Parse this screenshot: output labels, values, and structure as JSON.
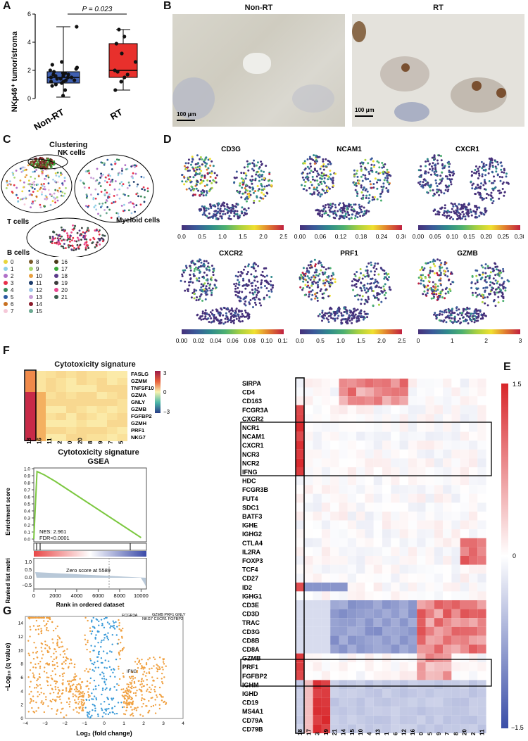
{
  "panels": {
    "A": "A",
    "B": "B",
    "C": "C",
    "D": "D",
    "E": "E",
    "F": "F",
    "G": "G"
  },
  "a": {
    "ylabel": "NKp46⁺ tumor/stroma",
    "pvalue": "P = 0.023",
    "groups": [
      "Non-RT",
      "RT"
    ],
    "yticks": [
      "0",
      "2",
      "4",
      "6"
    ],
    "colors": {
      "nonrt": "#3f5fb0",
      "rt": "#e8302c"
    },
    "chart_data": {
      "type": "box",
      "ylim": [
        0,
        6
      ],
      "boxes": [
        {
          "name": "Non-RT",
          "min": 0.1,
          "q1": 1.1,
          "median": 1.5,
          "q3": 1.9,
          "max": 5.1
        },
        {
          "name": "RT",
          "min": 0.6,
          "q1": 1.5,
          "median": 2.0,
          "q3": 3.9,
          "max": 4.9
        }
      ],
      "points": {
        "Non-RT": [
          0.2,
          0.6,
          0.9,
          1.0,
          1.1,
          1.2,
          1.2,
          1.3,
          1.3,
          1.4,
          1.4,
          1.5,
          1.5,
          1.5,
          1.6,
          1.6,
          1.7,
          1.7,
          1.8,
          1.8,
          1.9,
          2.0,
          2.1,
          2.2,
          2.4,
          2.6,
          5.1
        ],
        "RT": [
          0.6,
          1.2,
          1.5,
          1.7,
          1.9,
          2.0,
          2.6,
          3.2,
          3.9,
          4.4,
          4.9
        ]
      }
    }
  },
  "b": {
    "title_left": "Non-RT",
    "title_right": "RT",
    "scale": "100 μm"
  },
  "c": {
    "title": "Clustering",
    "labels": {
      "nk": "NK cells",
      "t": "T cells",
      "myeloid": "Myeloid cells",
      "b": "B cells"
    },
    "legend": [
      {
        "id": "0",
        "color": "#e8d53a"
      },
      {
        "id": "1",
        "color": "#8fd0e6"
      },
      {
        "id": "2",
        "color": "#b070c8"
      },
      {
        "id": "3",
        "color": "#e8304a"
      },
      {
        "id": "4",
        "color": "#3a8a58"
      },
      {
        "id": "5",
        "color": "#2c5aa0"
      },
      {
        "id": "6",
        "color": "#c87020"
      },
      {
        "id": "7",
        "color": "#f5c8d8"
      },
      {
        "id": "8",
        "color": "#7a5a2a"
      },
      {
        "id": "9",
        "color": "#a8d870"
      },
      {
        "id": "10",
        "color": "#e8a040"
      },
      {
        "id": "11",
        "color": "#1a3a6a"
      },
      {
        "id": "12",
        "color": "#a0c8e8"
      },
      {
        "id": "13",
        "color": "#c8a0d8"
      },
      {
        "id": "14",
        "color": "#8a1a2a"
      },
      {
        "id": "15",
        "color": "#6aa890"
      },
      {
        "id": "16",
        "color": "#4a3a1a"
      },
      {
        "id": "17",
        "color": "#38a838"
      },
      {
        "id": "18",
        "color": "#5a3a8a"
      },
      {
        "id": "19",
        "color": "#3a3a3a"
      },
      {
        "id": "20",
        "color": "#e84890"
      },
      {
        "id": "21",
        "color": "#3a5a4a"
      }
    ]
  },
  "d": {
    "plots": [
      {
        "title": "CD3G",
        "ticks": [
          "0.0",
          "0.5",
          "1.0",
          "1.5",
          "2.0",
          "2.5"
        ]
      },
      {
        "title": "NCAM1",
        "ticks": [
          "0.00",
          "0.06",
          "0.12",
          "0.18",
          "0.24",
          "0.30"
        ]
      },
      {
        "title": "CXCR1",
        "ticks": [
          "0.00",
          "0.05",
          "0.10",
          "0.15",
          "0.20",
          "0.25",
          "0.30"
        ]
      },
      {
        "title": "CXCR2",
        "ticks": [
          "0.00",
          "0.02",
          "0.04",
          "0.06",
          "0.08",
          "0.10",
          "0.12"
        ]
      },
      {
        "title": "PRF1",
        "ticks": [
          "0.0",
          "0.5",
          "1.0",
          "1.5",
          "2.0",
          "2.5"
        ]
      },
      {
        "title": "GZMB",
        "ticks": [
          "0",
          "1",
          "2",
          "3"
        ]
      }
    ]
  },
  "f": {
    "heatmap_title": "Cytotoxicity signature",
    "genes": [
      "FASLG",
      "GZMM",
      "TNFSF10",
      "GZMA",
      "GNLY",
      "GZMB",
      "FGFBP2",
      "GZMH",
      "PRF1",
      "NKG7"
    ],
    "columns": [
      "18",
      "16",
      "11",
      "2",
      "0",
      "20",
      "8",
      "9",
      "7",
      "5"
    ],
    "scale": [
      "3",
      "0",
      "−3"
    ],
    "gsea_title": "Cytotoxicity signature",
    "gsea_sub": "GSEA",
    "es_label": "Enrichment score",
    "es_ticks": [
      "1.0",
      "0.9",
      "0.8",
      "0.7",
      "0.6",
      "0.5",
      "0.4",
      "0.3",
      "0.2",
      "0.1",
      "0.0"
    ],
    "nes": "NES: 2.961",
    "fdr": "FDR<0.0001",
    "metric_label": "Ranked list metric",
    "metric_ticks": [
      "1.0",
      "0.5",
      "0.0",
      "−0.5"
    ],
    "zero_note": "Zero score at 5589",
    "xticks": [
      "0",
      "2000",
      "4000",
      "6000",
      "8000",
      "10000"
    ],
    "xlabel": "Rank in ordered dataset",
    "chart_data": {
      "type": "line",
      "x": [
        0,
        300,
        1000,
        2000,
        3000,
        4000,
        5000,
        6000,
        7000,
        8000,
        9000,
        10000
      ],
      "y": [
        0.0,
        0.96,
        0.91,
        0.82,
        0.72,
        0.62,
        0.52,
        0.42,
        0.32,
        0.22,
        0.12,
        0.02
      ],
      "xlabel": "Rank in ordered dataset",
      "ylabel": "Enrichment score",
      "ylim": [
        0,
        1.0
      ],
      "xlim": [
        0,
        10500
      ]
    }
  },
  "e": {
    "genes": [
      "SIRPA",
      "CD4",
      "CD163",
      "FCGR3A",
      "CXCR2",
      "NCR1",
      "NCAM1",
      "CXCR1",
      "NCR3",
      "NCR2",
      "IFNG",
      "HDC",
      "FCGR3B",
      "FUT4",
      "SDC1",
      "BATF3",
      "IGHE",
      "IGHG2",
      "CTLA4",
      "IL2RA",
      "FOXP3",
      "TCF4",
      "CD27",
      "ID2",
      "IGHG1",
      "CD3E",
      "CD3D",
      "TRAC",
      "CD3G",
      "CD8B",
      "CD8A",
      "GZMB",
      "PRF1",
      "FGFBP2",
      "IGHM",
      "IGHD",
      "CD19",
      "MS4A1",
      "CD79A",
      "CD79B"
    ],
    "columns": [
      "18",
      "17",
      "3",
      "19",
      "21",
      "14",
      "15",
      "10",
      "4",
      "13",
      "1",
      "6",
      "12",
      "16",
      "0",
      "5",
      "9",
      "7",
      "8",
      "20",
      "2",
      "11"
    ],
    "scale": [
      "1.5",
      "0",
      "−1.5"
    ]
  },
  "g": {
    "ylabel": "−Log₁₀ (q value)",
    "xlabel": "Log₂ (fold change)",
    "yticks": [
      "14",
      "12",
      "10",
      "8",
      "6",
      "4",
      "2",
      "0"
    ],
    "xticks": [
      "−4",
      "−3",
      "−2",
      "−1",
      "0",
      "1",
      "2",
      "3",
      "4"
    ],
    "annotations": {
      "fcgr3a": "FCGR3A",
      "top": "GZMB  PRF1  GNLY",
      "top2": "NKG7  CXCR1  FGFBP2",
      "ifng": "IFNG"
    },
    "colors": {
      "sig": "#f0a040",
      "nonsig": "#3a9ad8"
    },
    "chart_data": {
      "type": "scatter",
      "xlim": [
        -4,
        4
      ],
      "ylim": [
        0,
        15
      ],
      "labeled_points": [
        {
          "name": "FCGR3A",
          "x": 1.5,
          "y": 14.8
        },
        {
          "name": "GZMB",
          "x": 2.4,
          "y": 14.8
        },
        {
          "name": "IFNG",
          "x": 1.2,
          "y": 4.5
        }
      ],
      "series": [
        {
          "name": "significant",
          "color": "#f0a040"
        },
        {
          "name": "not significant",
          "color": "#3a9ad8"
        }
      ]
    }
  }
}
